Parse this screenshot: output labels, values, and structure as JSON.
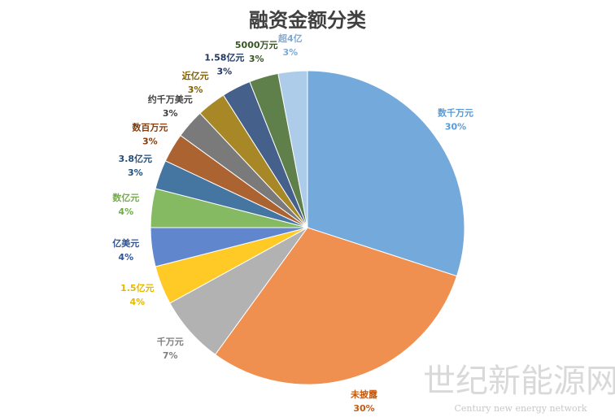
{
  "chart_data": {
    "type": "pie",
    "title": "融资金额分类",
    "categories": [
      "数千万元",
      "未披露",
      "千万元",
      "1.5亿元",
      "亿美元",
      "数亿元",
      "3.8亿元",
      "数百万元",
      "约千万美元",
      "近亿元",
      "1.58亿元",
      "5000万元",
      "超4亿"
    ],
    "values": [
      30,
      30,
      7,
      4,
      4,
      4,
      3,
      3,
      3,
      3,
      3,
      3,
      3
    ],
    "value_labels": [
      "30%",
      "30%",
      "7%",
      "4%",
      "4%",
      "4%",
      "3%",
      "3%",
      "3%",
      "3%",
      "3%",
      "3%",
      "3%"
    ],
    "colors": [
      "#5b9bd5",
      "#ed7d31",
      "#a5a5a5",
      "#ffc000",
      "#4472c4",
      "#70ad47",
      "#255e91",
      "#9e480e",
      "#636363",
      "#997300",
      "#264478",
      "#43682b",
      "#9dc3e6"
    ],
    "label_colors": [
      "#5b9bd5",
      "#c55a11",
      "#7f7f7f",
      "#e6b800",
      "#2f5597",
      "#70ad47",
      "#1f4e79",
      "#843c0c",
      "#404040",
      "#806000",
      "#1f3864",
      "#375623",
      "#7fa7d6"
    ],
    "watermark": {
      "title": "世纪新能源网",
      "subtitle": "Century new energy network"
    }
  }
}
